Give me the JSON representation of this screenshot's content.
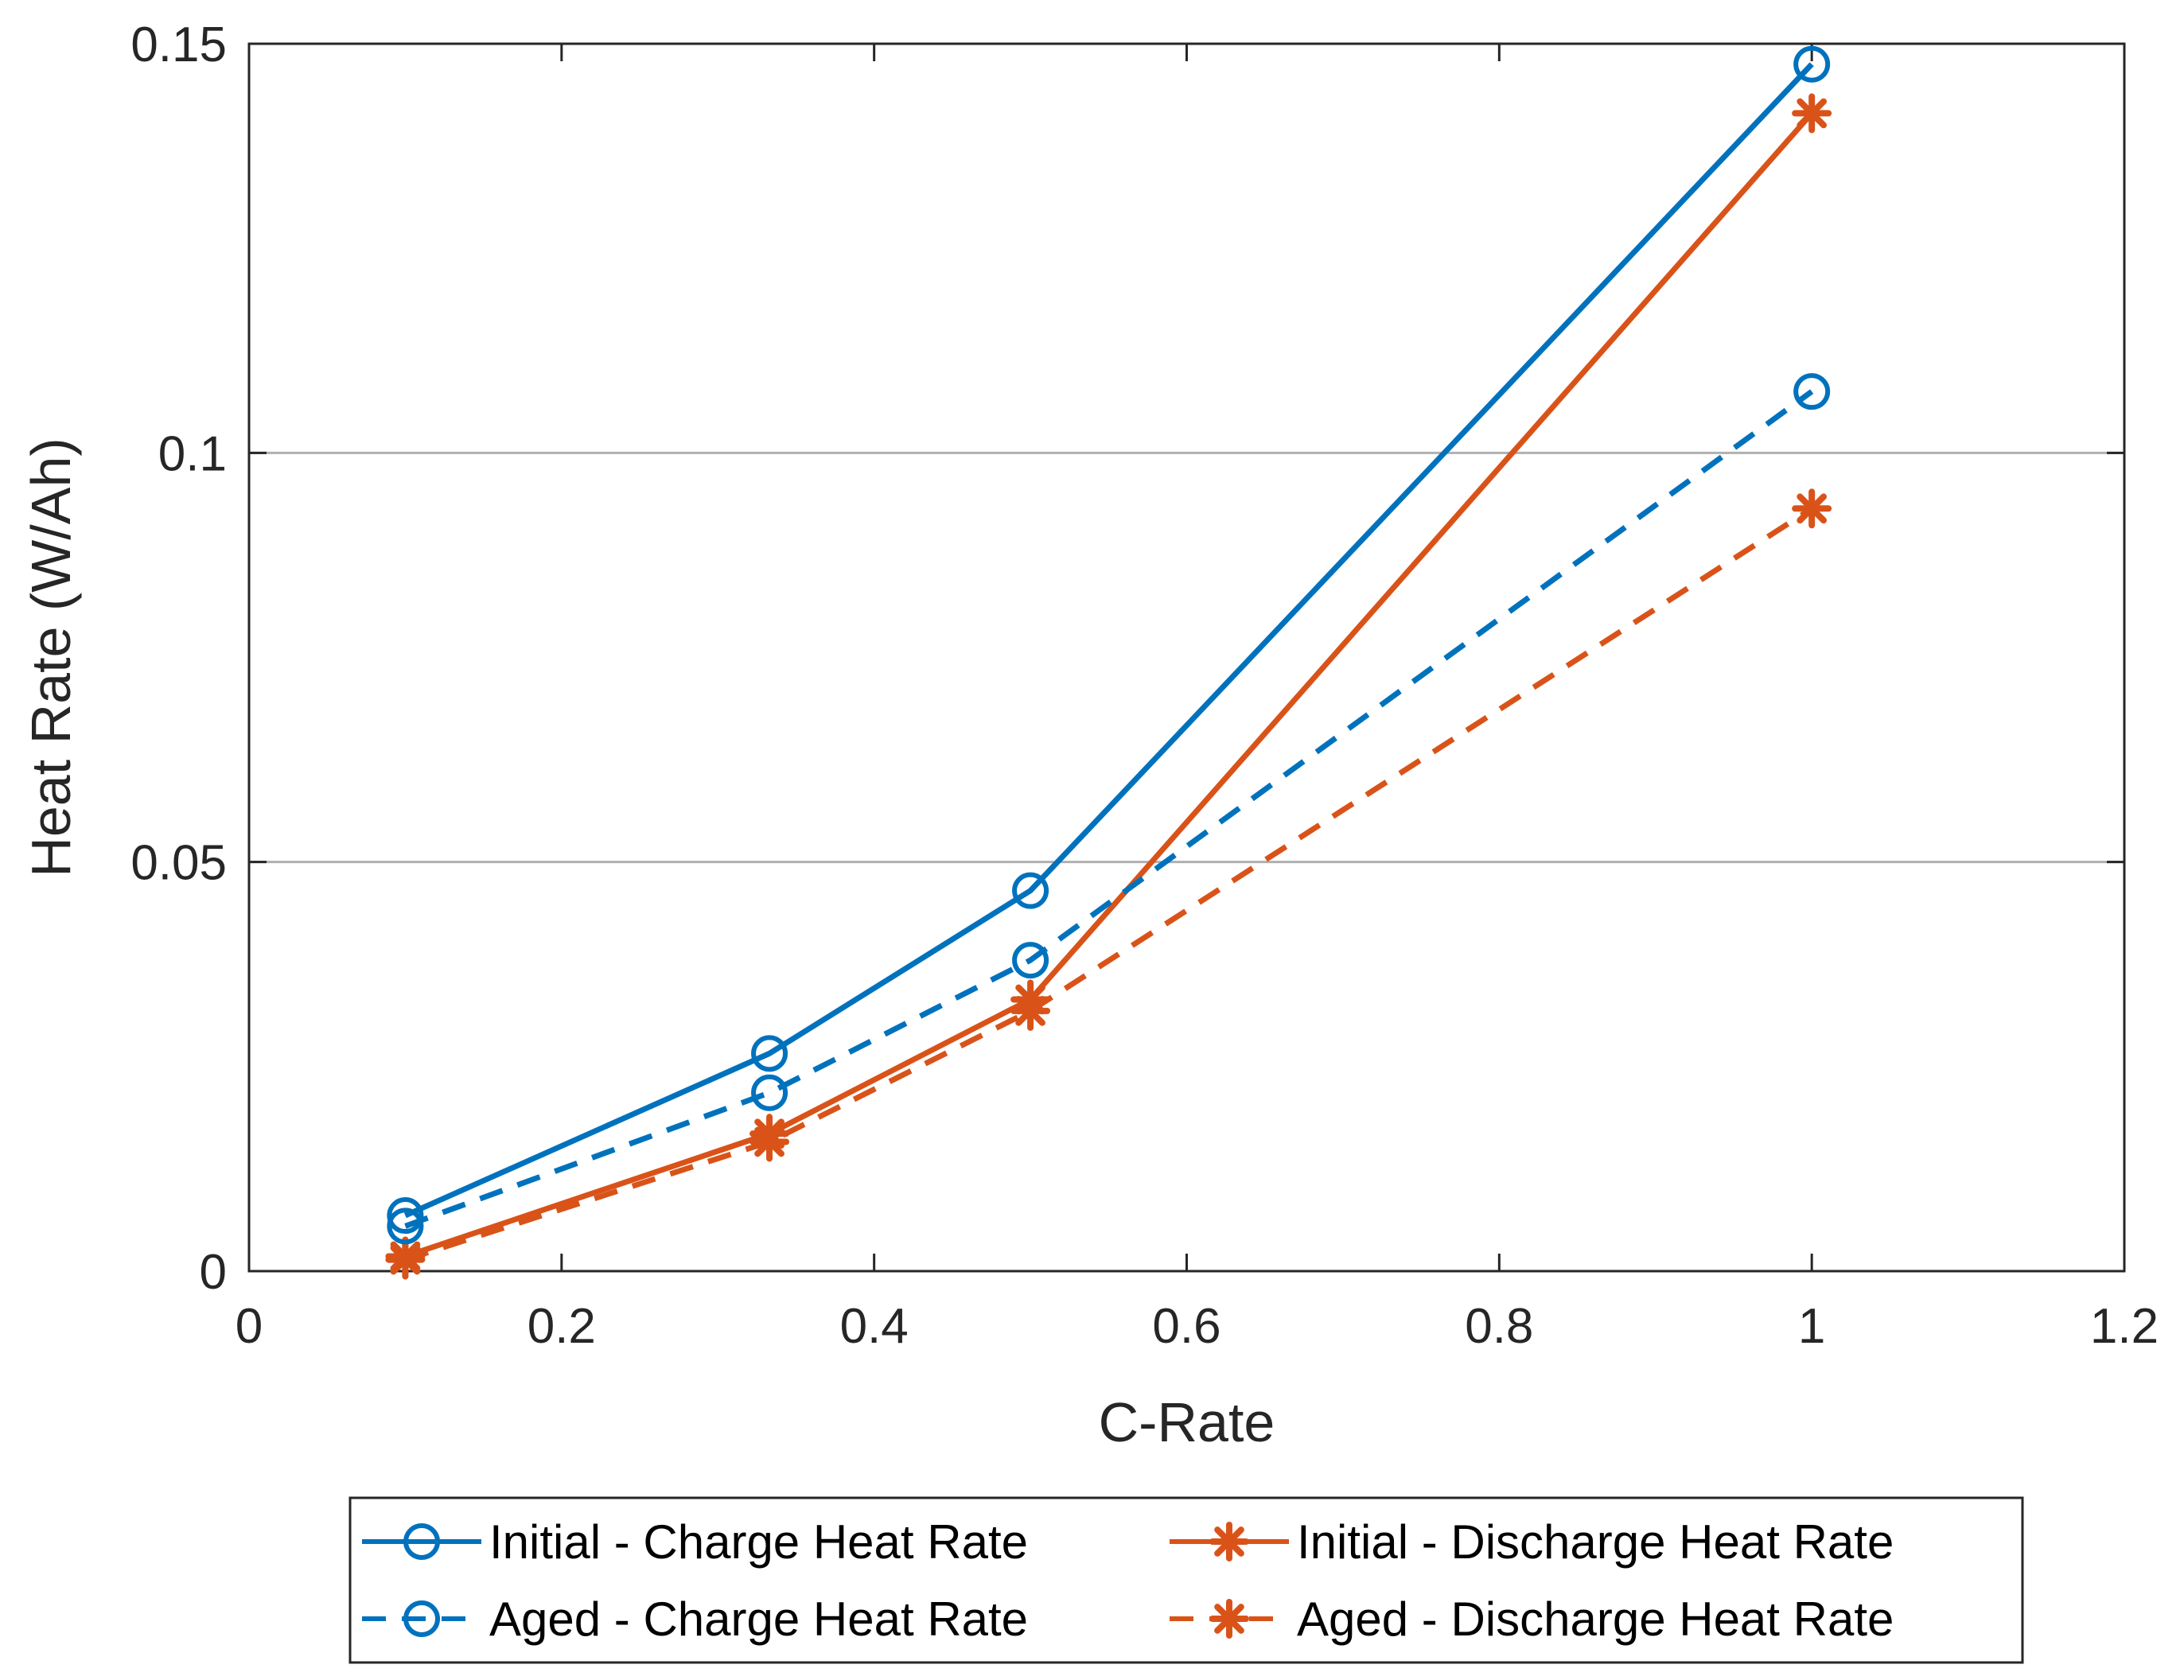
{
  "chart_data": {
    "type": "line",
    "xlabel": "C-Rate",
    "ylabel": "Heat Rate (W/Ah)",
    "xlim": [
      0,
      1.2
    ],
    "ylim": [
      0,
      0.15
    ],
    "xticks": [
      0,
      0.2,
      0.4,
      0.6,
      0.8,
      1,
      1.2
    ],
    "xtick_labels": [
      "0",
      "0.2",
      "0.4",
      "0.6",
      "0.8",
      "1",
      "1.2"
    ],
    "yticks": [
      0,
      0.05,
      0.1,
      0.15
    ],
    "ytick_labels": [
      "0",
      "0.05",
      "0.1",
      "0.15"
    ],
    "grid": "horizontal",
    "legend_placement": "bottom-outside",
    "series": [
      {
        "name": "Initial - Charge Heat Rate",
        "color": "#0072BD",
        "line": "solid",
        "marker": "circle",
        "x": [
          0.1,
          0.333,
          0.5,
          1.0
        ],
        "y": [
          0.0068,
          0.0266,
          0.0465,
          0.1475
        ]
      },
      {
        "name": "Initial - Discharge Heat Rate",
        "color": "#D95319",
        "line": "solid",
        "marker": "asterisk",
        "x": [
          0.1,
          0.333,
          0.5,
          1.0
        ],
        "y": [
          0.0018,
          0.0168,
          0.0332,
          0.1415
        ]
      },
      {
        "name": "Aged - Charge Heat Rate",
        "color": "#0072BD",
        "line": "dashed",
        "marker": "circle",
        "x": [
          0.1,
          0.333,
          0.5,
          1.0
        ],
        "y": [
          0.0055,
          0.0218,
          0.038,
          0.1075
        ]
      },
      {
        "name": "Aged - Discharge Heat Rate",
        "color": "#D95319",
        "line": "dashed",
        "marker": "asterisk",
        "x": [
          0.1,
          0.333,
          0.5,
          1.0
        ],
        "y": [
          0.0014,
          0.0158,
          0.0318,
          0.0932
        ]
      }
    ]
  }
}
